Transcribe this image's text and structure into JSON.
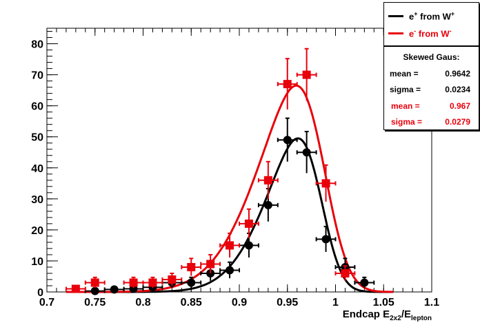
{
  "colors": {
    "black_series": "#000000",
    "red_series": "#e8000b"
  },
  "legend": {
    "entries": [
      {
        "base": "e",
        "charge": "+",
        "text": " from W",
        "w_charge": "+",
        "color": "#000000"
      },
      {
        "base": "e",
        "charge": "-",
        "text": " from W",
        "w_charge": "-",
        "color": "#e8000b"
      }
    ]
  },
  "stats": {
    "title": "Skewed Gaus:",
    "rows": [
      {
        "key": "mean =",
        "value": "0.9642",
        "color": "#000000"
      },
      {
        "key": "sigma =",
        "value": "0.0234",
        "color": "#000000"
      },
      {
        "key": "mean =",
        "value": "0.967",
        "color": "#e8000b"
      },
      {
        "key": "sigma =",
        "value": "0.0279",
        "color": "#e8000b"
      }
    ]
  },
  "chart_data": {
    "type": "scatter",
    "xlabel": {
      "main": "Endcap E",
      "sub1": "2x2",
      "sep": "/E",
      "sub2": "lepton"
    },
    "ylabel": "",
    "xlim": [
      0.7,
      1.1
    ],
    "ylim": [
      0,
      85
    ],
    "x_ticks": [
      "0.7",
      "0.75",
      "0.8",
      "0.85",
      "0.9",
      "0.95",
      "1",
      "1.05",
      "1.1"
    ],
    "y_ticks": [
      "0",
      "10",
      "20",
      "30",
      "40",
      "50",
      "60",
      "70",
      "80"
    ],
    "bin_half_width": 0.01,
    "series": [
      {
        "name": "e+ from W+",
        "marker": "circle",
        "color": "#000000",
        "points": [
          {
            "x": 0.75,
            "y": 0.3,
            "err": 0.5
          },
          {
            "x": 0.77,
            "y": 0.8,
            "err": 0.9
          },
          {
            "x": 0.79,
            "y": 1.0,
            "err": 1.0
          },
          {
            "x": 0.81,
            "y": 1.5,
            "err": 1.2
          },
          {
            "x": 0.83,
            "y": 3.0,
            "err": 1.7
          },
          {
            "x": 0.85,
            "y": 3.0,
            "err": 1.7
          },
          {
            "x": 0.87,
            "y": 6.0,
            "err": 2.4
          },
          {
            "x": 0.89,
            "y": 7.0,
            "err": 2.6
          },
          {
            "x": 0.91,
            "y": 15.0,
            "err": 3.9
          },
          {
            "x": 0.93,
            "y": 28.0,
            "err": 5.3
          },
          {
            "x": 0.95,
            "y": 49.0,
            "err": 7.0
          },
          {
            "x": 0.97,
            "y": 45.0,
            "err": 6.7
          },
          {
            "x": 0.99,
            "y": 17.0,
            "err": 4.1
          },
          {
            "x": 1.01,
            "y": 8.0,
            "err": 2.8
          },
          {
            "x": 1.03,
            "y": 3.0,
            "err": 1.7
          }
        ],
        "fit": {
          "mean": 0.9642,
          "sigma": 0.0234,
          "peak": 49.5
        }
      },
      {
        "name": "e- from W-",
        "marker": "square",
        "color": "#e8000b",
        "points": [
          {
            "x": 0.73,
            "y": 1.0,
            "err": 1.0
          },
          {
            "x": 0.75,
            "y": 3.0,
            "err": 1.7
          },
          {
            "x": 0.79,
            "y": 3.0,
            "err": 1.7
          },
          {
            "x": 0.81,
            "y": 3.0,
            "err": 1.7
          },
          {
            "x": 0.83,
            "y": 4.0,
            "err": 2.0
          },
          {
            "x": 0.85,
            "y": 8.0,
            "err": 2.8
          },
          {
            "x": 0.87,
            "y": 9.0,
            "err": 3.0
          },
          {
            "x": 0.89,
            "y": 15.0,
            "err": 3.9
          },
          {
            "x": 0.91,
            "y": 22.0,
            "err": 4.7
          },
          {
            "x": 0.93,
            "y": 36.0,
            "err": 6.0
          },
          {
            "x": 0.95,
            "y": 67.0,
            "err": 8.2
          },
          {
            "x": 0.97,
            "y": 70.0,
            "err": 8.4
          },
          {
            "x": 0.99,
            "y": 35.0,
            "err": 5.9
          },
          {
            "x": 1.01,
            "y": 6.0,
            "err": 2.4
          }
        ],
        "fit": {
          "mean": 0.967,
          "sigma": 0.0279,
          "peak": 66.5
        }
      }
    ]
  }
}
